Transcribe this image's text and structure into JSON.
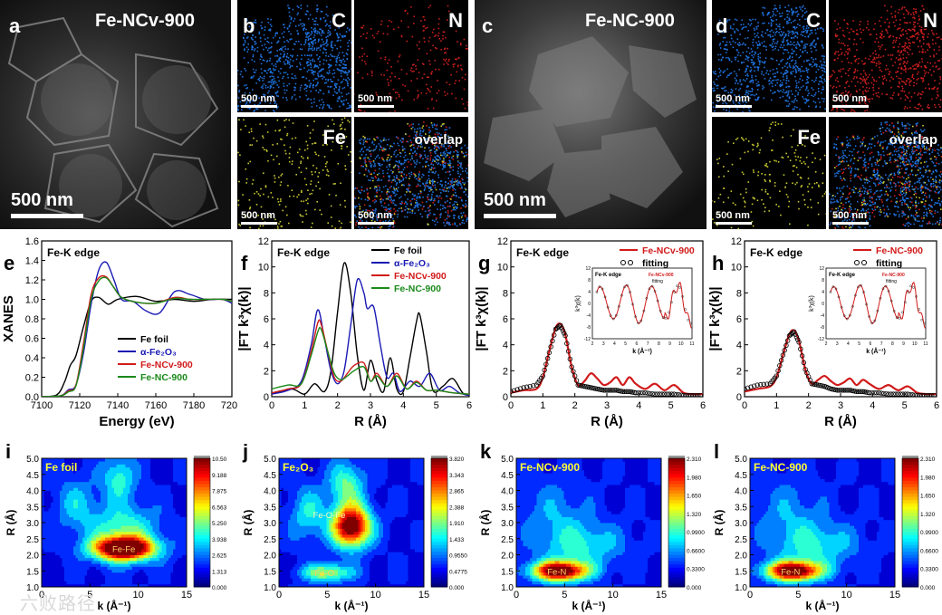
{
  "figure": {
    "panel_a": {
      "label": "a",
      "title": "Fe-NCv-900",
      "scale": "500 nm"
    },
    "panel_b": {
      "label": "b",
      "maps": [
        "C",
        "N",
        "Fe",
        "overlap"
      ],
      "scale": "500 nm",
      "colors": [
        "#1e6fd9",
        "#c81e1e",
        "#c8c832"
      ]
    },
    "panel_c": {
      "label": "c",
      "title": "Fe-NC-900",
      "scale": "500 nm"
    },
    "panel_d": {
      "label": "d",
      "maps": [
        "C",
        "N",
        "Fe",
        "overlap"
      ],
      "scale": "500 nm"
    },
    "watermark": "六败路径"
  },
  "chart_data": [
    {
      "id": "e",
      "type": "line",
      "title": "Fe-K edge",
      "xlabel": "Energy (eV)",
      "ylabel": "XANES",
      "xlim": [
        7100,
        7200
      ],
      "ylim": [
        0,
        1.6
      ],
      "xticks": [
        "7100",
        "7120",
        "7140",
        "7160",
        "7180",
        "7200"
      ],
      "yticks": [
        "0.0",
        "0.2",
        "0.4",
        "0.6",
        "0.8",
        "1.0",
        "1.2",
        "1.4",
        "1.6"
      ],
      "series": [
        {
          "name": "Fe foil",
          "color": "#000000",
          "x": [
            7100,
            7108,
            7112,
            7115,
            7118,
            7122,
            7126,
            7130,
            7135,
            7140,
            7150,
            7160,
            7170,
            7180,
            7190,
            7200
          ],
          "y": [
            0,
            0.02,
            0.15,
            0.32,
            0.42,
            0.72,
            0.98,
            1.02,
            0.95,
            1.0,
            1.03,
            0.98,
            1.0,
            0.98,
            1.0,
            1.0
          ]
        },
        {
          "name": "α-Fe2O3",
          "color": "#1a1ab4",
          "x": [
            7100,
            7110,
            7114,
            7118,
            7122,
            7126,
            7130,
            7134,
            7138,
            7142,
            7148,
            7155,
            7162,
            7170,
            7178,
            7186,
            7195,
            7200
          ],
          "y": [
            0,
            0.01,
            0.07,
            0.12,
            0.45,
            0.95,
            1.3,
            1.38,
            1.2,
            1.0,
            0.98,
            0.88,
            0.86,
            1.08,
            1.05,
            1.0,
            1.0,
            0.96
          ]
        },
        {
          "name": "Fe-NCv-900",
          "color": "#d11a1a",
          "x": [
            7100,
            7110,
            7114,
            7118,
            7122,
            7126,
            7130,
            7134,
            7138,
            7142,
            7150,
            7160,
            7170,
            7178,
            7186,
            7195,
            7200
          ],
          "y": [
            0,
            0.01,
            0.06,
            0.12,
            0.55,
            1.05,
            1.22,
            1.23,
            1.12,
            1.02,
            0.97,
            0.96,
            1.02,
            1.0,
            1.0,
            1.0,
            0.98
          ]
        },
        {
          "name": "Fe-NC-900",
          "color": "#1a8a1a",
          "x": [
            7100,
            7110,
            7114,
            7118,
            7122,
            7126,
            7130,
            7134,
            7138,
            7142,
            7150,
            7160,
            7170,
            7178,
            7186,
            7195,
            7200
          ],
          "y": [
            0,
            0.01,
            0.05,
            0.11,
            0.5,
            1.0,
            1.19,
            1.22,
            1.12,
            1.02,
            0.97,
            0.96,
            1.01,
            1.0,
            1.0,
            1.0,
            0.98
          ]
        }
      ]
    },
    {
      "id": "f",
      "type": "line",
      "title": "Fe-K edge",
      "xlabel": "R (Å)",
      "ylabel": "|FT k³χ(k)|",
      "xlim": [
        0,
        6
      ],
      "ylim": [
        0,
        12
      ],
      "xticks": [
        "0",
        "1",
        "2",
        "3",
        "4",
        "5",
        "6"
      ],
      "yticks": [
        "0",
        "2",
        "4",
        "6",
        "8",
        "10",
        "12"
      ],
      "series": [
        {
          "name": "Fe foil",
          "color": "#000000",
          "x": [
            0,
            0.6,
            1.0,
            1.3,
            1.6,
            1.8,
            2.0,
            2.2,
            2.4,
            2.6,
            2.8,
            3.0,
            3.2,
            3.4,
            3.6,
            3.8,
            4.0,
            4.2,
            4.4,
            4.5,
            4.7,
            4.9,
            5.2,
            5.5,
            5.8,
            6.0
          ],
          "y": [
            0.2,
            0.6,
            0.2,
            1.0,
            0.4,
            2.0,
            6.5,
            10.3,
            8.0,
            3.2,
            0.5,
            2.8,
            1.2,
            0.4,
            3.0,
            0.6,
            0.4,
            3.0,
            5.8,
            6.3,
            3.5,
            0.5,
            0.8,
            1.4,
            0.3,
            0.1
          ]
        },
        {
          "name": "α-Fe2O3",
          "color": "#1a1ab4",
          "x": [
            0,
            0.5,
            0.9,
            1.2,
            1.4,
            1.6,
            1.8,
            2.0,
            2.2,
            2.4,
            2.6,
            2.8,
            2.9,
            3.1,
            3.3,
            3.5,
            3.7,
            3.9,
            4.2,
            4.5,
            4.8,
            5.1,
            5.4,
            5.7,
            6.0
          ],
          "y": [
            0.2,
            0.5,
            1.2,
            4.0,
            6.7,
            4.5,
            2.0,
            1.0,
            2.0,
            5.5,
            9.0,
            8.0,
            6.8,
            6.9,
            4.0,
            1.5,
            1.8,
            0.4,
            1.2,
            0.8,
            1.8,
            0.5,
            0.8,
            0.3,
            0.1
          ]
        },
        {
          "name": "Fe-NCv-900",
          "color": "#d11a1a",
          "x": [
            0,
            0.5,
            0.9,
            1.2,
            1.4,
            1.5,
            1.7,
            1.9,
            2.1,
            2.3,
            2.5,
            2.8,
            3.0,
            3.2,
            3.5,
            3.8,
            4.1,
            4.4,
            4.7,
            5.0,
            5.5,
            6.0
          ],
          "y": [
            0.3,
            0.6,
            1.0,
            3.5,
            5.7,
            5.6,
            3.5,
            1.5,
            1.2,
            1.8,
            2.4,
            2.6,
            1.2,
            1.8,
            0.8,
            1.8,
            0.6,
            1.2,
            0.5,
            0.5,
            0.3,
            0.2
          ]
        },
        {
          "name": "Fe-NC-900",
          "color": "#1a8a1a",
          "x": [
            0,
            0.5,
            0.9,
            1.2,
            1.4,
            1.5,
            1.7,
            1.9,
            2.1,
            2.3,
            2.5,
            2.8,
            3.0,
            3.2,
            3.5,
            3.8,
            4.1,
            4.4,
            4.7,
            5.0,
            5.5,
            6.0
          ],
          "y": [
            0.6,
            0.9,
            1.0,
            3.2,
            5.0,
            5.2,
            3.5,
            1.8,
            1.3,
            1.6,
            2.0,
            2.3,
            1.2,
            1.6,
            0.8,
            1.6,
            0.6,
            1.1,
            0.5,
            0.5,
            0.3,
            0.2
          ]
        }
      ]
    },
    {
      "id": "g",
      "type": "line",
      "title": "Fe-K edge",
      "xlabel": "R (Å)",
      "ylabel": "|FT k³χ(k)|",
      "xlim": [
        0,
        6
      ],
      "ylim": [
        0,
        12
      ],
      "xticks": [
        "0",
        "1",
        "2",
        "3",
        "4",
        "5",
        "6"
      ],
      "yticks": [
        "0",
        "2",
        "4",
        "6",
        "8",
        "10",
        "12"
      ],
      "series": [
        {
          "name": "Fe-NCv-900",
          "color": "#d11a1a",
          "x": [
            0,
            0.4,
            0.8,
            1.0,
            1.2,
            1.4,
            1.55,
            1.7,
            1.9,
            2.1,
            2.3,
            2.5,
            2.7,
            2.9,
            3.1,
            3.3,
            3.5,
            3.7,
            3.9,
            4.2,
            4.5,
            4.8,
            5.1,
            5.4,
            5.7,
            6.0
          ],
          "y": [
            0.3,
            0.5,
            0.6,
            1.5,
            3.5,
            5.3,
            5.6,
            4.8,
            2.3,
            0.9,
            1.2,
            1.8,
            1.4,
            0.9,
            1.1,
            1.5,
            0.9,
            1.5,
            1.0,
            0.6,
            1.0,
            0.5,
            0.9,
            0.3,
            0.2,
            0.2
          ]
        },
        {
          "name": "fitting",
          "color": "#000000",
          "marker": "circle",
          "x": [
            0,
            0.4,
            0.8,
            1.0,
            1.2,
            1.4,
            1.55,
            1.7,
            1.9,
            2.1,
            2.3,
            2.5,
            2.7,
            2.9,
            3.1,
            3.3,
            3.5,
            3.7,
            3.9,
            4.2,
            4.5,
            4.8,
            5.1,
            5.4,
            5.7,
            6.0
          ],
          "y": [
            0.4,
            0.7,
            0.9,
            1.6,
            3.4,
            5.2,
            5.5,
            4.7,
            2.3,
            0.9,
            0.8,
            0.7,
            0.6,
            0.5,
            0.5,
            0.5,
            0.4,
            0.4,
            0.3,
            0.3,
            0.2,
            0.2,
            0.2,
            0.1,
            0.1,
            0.1
          ]
        }
      ],
      "inset": {
        "title": "Fe-K edge",
        "xlabel": "k (Å⁻¹)",
        "ylabel": "k³χ(k)",
        "xlim": [
          2,
          11
        ],
        "ylim": [
          -12,
          12
        ],
        "legend": [
          "Fe-NCv-900",
          "fitting"
        ]
      }
    },
    {
      "id": "h",
      "type": "line",
      "title": "Fe-K edge",
      "xlabel": "R (Å)",
      "ylabel": "|FT k³χ(k)|",
      "xlim": [
        0,
        6
      ],
      "ylim": [
        0,
        12
      ],
      "xticks": [
        "0",
        "1",
        "2",
        "3",
        "4",
        "5",
        "6"
      ],
      "yticks": [
        "0",
        "2",
        "4",
        "6",
        "8",
        "10",
        "12"
      ],
      "series": [
        {
          "name": "Fe-NC-900",
          "color": "#d11a1a",
          "x": [
            0,
            0.4,
            0.8,
            1.0,
            1.2,
            1.4,
            1.55,
            1.7,
            1.9,
            2.1,
            2.3,
            2.5,
            2.7,
            2.9,
            3.1,
            3.3,
            3.5,
            3.7,
            3.9,
            4.2,
            4.5,
            4.8,
            5.1,
            5.4,
            5.7,
            6.0
          ],
          "y": [
            0.4,
            0.6,
            0.8,
            1.5,
            3.2,
            4.8,
            5.1,
            4.3,
            2.1,
            1.0,
            1.3,
            1.6,
            1.2,
            0.9,
            1.1,
            1.4,
            0.9,
            1.3,
            1.0,
            0.6,
            0.9,
            0.5,
            0.8,
            0.3,
            0.2,
            0.2
          ]
        },
        {
          "name": "fitting",
          "color": "#000000",
          "marker": "circle",
          "x": [
            0,
            0.4,
            0.8,
            1.0,
            1.2,
            1.4,
            1.55,
            1.7,
            1.9,
            2.1,
            2.3,
            2.5,
            2.7,
            2.9,
            3.1,
            3.3,
            3.5,
            3.7,
            3.9,
            4.2,
            4.5,
            4.8,
            5.1,
            5.4,
            5.7,
            6.0
          ],
          "y": [
            0.6,
            0.9,
            1.0,
            1.6,
            3.2,
            4.7,
            5.0,
            4.2,
            2.1,
            1.0,
            0.9,
            0.8,
            0.6,
            0.5,
            0.5,
            0.5,
            0.4,
            0.4,
            0.3,
            0.3,
            0.2,
            0.2,
            0.2,
            0.1,
            0.1,
            0.1
          ]
        }
      ],
      "inset": {
        "title": "Fe-K edge",
        "xlabel": "k (Å⁻¹)",
        "ylabel": "k³χ(k)",
        "xlim": [
          2,
          11
        ],
        "ylim": [
          -12,
          12
        ],
        "legend": [
          "Fe-NC-900",
          "fitting"
        ]
      }
    },
    {
      "id": "i",
      "type": "heatmap",
      "title": "Fe foil",
      "xlabel": "k (Å⁻¹)",
      "ylabel": "R (Å)",
      "xlim": [
        0,
        15
      ],
      "ylim": [
        1.0,
        5.0
      ],
      "xticks": [
        "0",
        "5",
        "10",
        "15"
      ],
      "yticks": [
        "1.0",
        "1.5",
        "2.0",
        "2.5",
        "3.0",
        "3.5",
        "4.0",
        "4.5",
        "5.0"
      ],
      "colorbar": [
        "10.50",
        "9.188",
        "7.875",
        "6.563",
        "5.250",
        "3.938",
        "2.625",
        "1.313",
        "0.000"
      ],
      "annotations": [
        "Fe-Fe"
      ],
      "peaks": [
        {
          "k": 8.5,
          "r": 2.2,
          "sk": 2.2,
          "sr": 0.25,
          "a": 1.0
        },
        {
          "k": 8.5,
          "r": 2.7,
          "sk": 2.5,
          "sr": 0.6,
          "a": 0.35
        },
        {
          "k": 8,
          "r": 4.4,
          "sk": 1.2,
          "sr": 0.5,
          "a": 0.3
        },
        {
          "k": 3.5,
          "r": 3.6,
          "sk": 1.5,
          "sr": 0.6,
          "a": 0.2
        }
      ]
    },
    {
      "id": "j",
      "type": "heatmap",
      "title": "Fe₂O₃",
      "xlabel": "k (Å⁻¹)",
      "ylabel": "R (Å)",
      "xlim": [
        0,
        15
      ],
      "ylim": [
        1.0,
        5.0
      ],
      "xticks": [
        "0",
        "5",
        "10",
        "15"
      ],
      "yticks": [
        "1.0",
        "1.5",
        "2.0",
        "2.5",
        "3.0",
        "3.5",
        "4.0",
        "4.5",
        "5.0"
      ],
      "colorbar": [
        "3.820",
        "3.343",
        "2.865",
        "2.388",
        "1.910",
        "1.433",
        "0.9550",
        "0.4775",
        "0.000"
      ],
      "annotations": [
        "Fe-O-Fe",
        "Fe-O"
      ],
      "peaks": [
        {
          "k": 7.5,
          "r": 2.9,
          "sk": 1.4,
          "sr": 0.45,
          "a": 1.0
        },
        {
          "k": 5,
          "r": 1.45,
          "sk": 1.8,
          "sr": 0.2,
          "a": 0.45
        },
        {
          "k": 7,
          "r": 4.2,
          "sk": 1.3,
          "sr": 0.5,
          "a": 0.35
        },
        {
          "k": 3,
          "r": 3.3,
          "sk": 1.3,
          "sr": 0.6,
          "a": 0.25
        }
      ]
    },
    {
      "id": "k",
      "type": "heatmap",
      "title": "Fe-NCv-900",
      "xlabel": "k (Å⁻¹)",
      "ylabel": "R (Å)",
      "xlim": [
        0,
        15
      ],
      "ylim": [
        1.0,
        5.0
      ],
      "xticks": [
        "0",
        "5",
        "10",
        "15"
      ],
      "yticks": [
        "1.0",
        "1.5",
        "2.0",
        "2.5",
        "3.0",
        "3.5",
        "4.0",
        "4.5",
        "5.0"
      ],
      "colorbar": [
        "2.310",
        "1.980",
        "1.650",
        "1.320",
        "0.9900",
        "0.6600",
        "0.3300",
        "0.000"
      ],
      "annotations": [
        "Fe-N"
      ],
      "peaks": [
        {
          "k": 4.5,
          "r": 1.5,
          "sk": 2.0,
          "sr": 0.22,
          "a": 1.0
        },
        {
          "k": 7,
          "r": 2.3,
          "sk": 3,
          "sr": 0.5,
          "a": 0.25
        },
        {
          "k": 4,
          "r": 3.3,
          "sk": 2.5,
          "sr": 0.8,
          "a": 0.15
        }
      ]
    },
    {
      "id": "l",
      "type": "heatmap",
      "title": "Fe-NC-900",
      "xlabel": "k (Å⁻¹)",
      "ylabel": "R (Å)",
      "xlim": [
        0,
        15
      ],
      "ylim": [
        1.0,
        5.0
      ],
      "xticks": [
        "0",
        "5",
        "10",
        "15"
      ],
      "yticks": [
        "1.0",
        "1.5",
        "2.0",
        "2.5",
        "3.0",
        "3.5",
        "4.0",
        "4.5",
        "5.0"
      ],
      "colorbar": [
        "2.310",
        "1.980",
        "1.650",
        "1.320",
        "0.9900",
        "0.6600",
        "0.3300",
        "0.000"
      ],
      "annotations": [
        "Fe-N"
      ],
      "peaks": [
        {
          "k": 4.5,
          "r": 1.5,
          "sk": 2.0,
          "sr": 0.22,
          "a": 1.0
        },
        {
          "k": 7,
          "r": 2.3,
          "sk": 3,
          "sr": 0.5,
          "a": 0.25
        },
        {
          "k": 4,
          "r": 3.3,
          "sk": 2.5,
          "sr": 0.8,
          "a": 0.15
        }
      ]
    }
  ]
}
